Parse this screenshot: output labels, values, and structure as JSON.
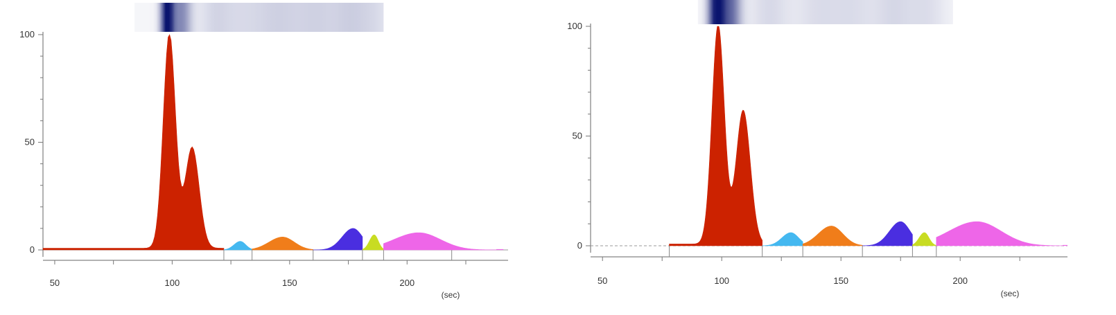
{
  "chart_data": [
    {
      "type": "area",
      "title": "",
      "xlabel": "(sec)",
      "ylabel": "",
      "xlim": [
        45,
        243
      ],
      "ylim": [
        0,
        100
      ],
      "x_ticks": [
        "50",
        "100",
        "150",
        "200"
      ],
      "y_ticks": [
        "0",
        "50",
        "100"
      ],
      "grid": false,
      "gel_lane": true,
      "unit_label": "(sec)",
      "baseline_segment_x": [
        122,
        134,
        160,
        181,
        190,
        219
      ],
      "peaks": [
        {
          "name": "",
          "color": "#cc2200",
          "x_start": 45,
          "x_end": 122,
          "apex_x": [
            98.8,
            108.5
          ],
          "apex_y": [
            100,
            47
          ]
        },
        {
          "name": "",
          "color": "#44b8f0",
          "x_start": 122,
          "x_end": 134,
          "apex_x": [
            129
          ],
          "apex_y": [
            4
          ]
        },
        {
          "name": "",
          "color": "#f07d1a",
          "x_start": 134,
          "x_end": 160,
          "apex_x": [
            147
          ],
          "apex_y": [
            6
          ]
        },
        {
          "name": "",
          "color": "#4a2ee0",
          "x_start": 160,
          "x_end": 181,
          "apex_x": [
            177
          ],
          "apex_y": [
            10
          ]
        },
        {
          "name": "",
          "color": "#c8dc22",
          "x_start": 181,
          "x_end": 190,
          "apex_x": [
            186
          ],
          "apex_y": [
            7
          ]
        },
        {
          "name": "",
          "color": "#ee66e8",
          "x_start": 190,
          "x_end": 238,
          "apex_x": [
            205
          ],
          "apex_y": [
            8
          ]
        }
      ]
    },
    {
      "type": "area",
      "title": "",
      "xlabel": "(sec)",
      "ylabel": "",
      "xlim": [
        45,
        245
      ],
      "ylim": [
        0,
        100
      ],
      "x_ticks": [
        "50",
        "100",
        "150",
        "200"
      ],
      "y_ticks": [
        "0",
        "50",
        "100"
      ],
      "grid": false,
      "gel_lane": true,
      "unit_label": "(sec)",
      "baseline_segment_x": [
        78,
        117,
        134,
        159,
        180,
        190
      ],
      "peaks": [
        {
          "name": "",
          "color": "#cc2200",
          "x_start": 78,
          "x_end": 117,
          "apex_x": [
            98.5,
            109
          ],
          "apex_y": [
            100,
            61
          ]
        },
        {
          "name": "",
          "color": "#44b8f0",
          "x_start": 117,
          "x_end": 134,
          "apex_x": [
            129
          ],
          "apex_y": [
            6
          ]
        },
        {
          "name": "",
          "color": "#f07d1a",
          "x_start": 134,
          "x_end": 159,
          "apex_x": [
            146
          ],
          "apex_y": [
            9
          ]
        },
        {
          "name": "",
          "color": "#4a2ee0",
          "x_start": 159,
          "x_end": 180,
          "apex_x": [
            175
          ],
          "apex_y": [
            11
          ]
        },
        {
          "name": "",
          "color": "#c8dc22",
          "x_start": 180,
          "x_end": 190,
          "apex_x": [
            185
          ],
          "apex_y": [
            6
          ]
        },
        {
          "name": "",
          "color": "#ee66e8",
          "x_start": 190,
          "x_end": 243,
          "apex_x": [
            207
          ],
          "apex_y": [
            11
          ]
        }
      ]
    }
  ],
  "gel_lanes": [
    {
      "bands": [
        {
          "x": 98,
          "intensity": 1.0,
          "width": 2
        },
        {
          "x": 104,
          "intensity": 0.45,
          "width": 3
        },
        {
          "x": 118,
          "intensity": 0.12,
          "width": 5
        },
        {
          "x": 128,
          "intensity": 0.08,
          "width": 6
        },
        {
          "x": 140,
          "intensity": 0.1,
          "width": 7
        },
        {
          "x": 150,
          "intensity": 0.1,
          "width": 7
        },
        {
          "x": 162,
          "intensity": 0.12,
          "width": 6
        },
        {
          "x": 175,
          "intensity": 0.14,
          "width": 6
        },
        {
          "x": 186,
          "intensity": 0.1,
          "width": 6
        }
      ],
      "x_from": 84,
      "x_to": 190
    },
    {
      "bands": [
        {
          "x": 98,
          "intensity": 1.0,
          "width": 2.5
        },
        {
          "x": 104,
          "intensity": 0.55,
          "width": 3
        },
        {
          "x": 120,
          "intensity": 0.12,
          "width": 6
        },
        {
          "x": 140,
          "intensity": 0.1,
          "width": 7
        },
        {
          "x": 155,
          "intensity": 0.1,
          "width": 7
        },
        {
          "x": 172,
          "intensity": 0.12,
          "width": 6
        },
        {
          "x": 186,
          "intensity": 0.1,
          "width": 6
        }
      ],
      "x_from": 90,
      "x_to": 197
    }
  ]
}
